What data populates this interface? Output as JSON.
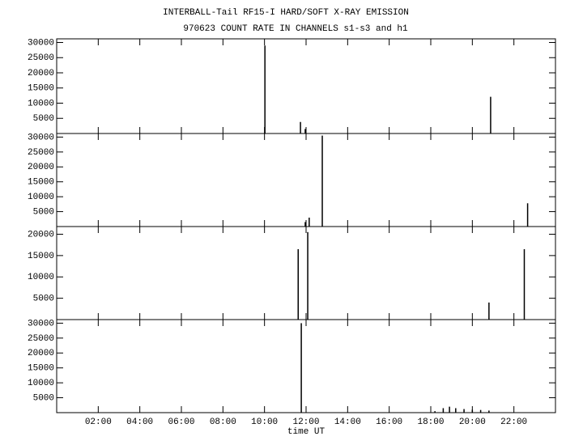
{
  "chart_data": [
    {
      "type": "stem",
      "title": "INTERBALL-Tail RF15-I HARD/SOFT X-RAY EMISSION",
      "subtitle": "970623  COUNT RATE IN CHANNELS s1-s3 and h1",
      "x": [
        10.02,
        11.73,
        11.96,
        20.88
      ],
      "values": [
        29000,
        3800,
        1500,
        12100
      ],
      "xlim": [
        0,
        24
      ],
      "xticks": [
        2,
        4,
        6,
        8,
        10,
        12,
        14,
        16,
        18,
        20,
        22
      ],
      "ylim": [
        0,
        31200
      ],
      "yticks": [
        5000,
        10000,
        15000,
        20000,
        25000,
        30000
      ],
      "color": "#000000"
    },
    {
      "type": "stem",
      "x": [
        11.96,
        12.15,
        12.78,
        22.66
      ],
      "values": [
        1500,
        3000,
        30500,
        7800
      ],
      "xlim": [
        0,
        24
      ],
      "xticks": [
        2,
        4,
        6,
        8,
        10,
        12,
        14,
        16,
        18,
        20,
        22
      ],
      "ylim": [
        0,
        31200
      ],
      "yticks": [
        5000,
        10000,
        15000,
        20000,
        25000,
        30000
      ],
      "color": "#000000"
    },
    {
      "type": "stem",
      "x": [
        11.62,
        12.08,
        20.8,
        22.5
      ],
      "values": [
        16500,
        20500,
        4000,
        16500
      ],
      "xlim": [
        0,
        24
      ],
      "xticks": [
        2,
        4,
        6,
        8,
        10,
        12,
        14,
        16,
        18,
        20,
        22
      ],
      "ylim": [
        0,
        21800
      ],
      "yticks": [
        5000,
        10000,
        15000,
        20000
      ],
      "color": "#000000"
    },
    {
      "type": "stem",
      "xlabel": "time UT",
      "x": [
        11.77,
        18.2,
        18.6,
        18.9,
        19.2,
        19.6,
        20.0,
        20.4,
        20.8
      ],
      "values": [
        30000,
        500,
        1500,
        2000,
        1500,
        1200,
        1000,
        900,
        700
      ],
      "xlim": [
        0,
        24
      ],
      "xticks": [
        {
          "value": 2,
          "label": "02:00"
        },
        {
          "value": 4,
          "label": "04:00"
        },
        {
          "value": 6,
          "label": "06:00"
        },
        {
          "value": 8,
          "label": "08:00"
        },
        {
          "value": 10,
          "label": "10:00"
        },
        {
          "value": 12,
          "label": "12:00"
        },
        {
          "value": 14,
          "label": "14:00"
        },
        {
          "value": 16,
          "label": "16:00"
        },
        {
          "value": 18,
          "label": "18:00"
        },
        {
          "value": 20,
          "label": "20:00"
        },
        {
          "value": 22,
          "label": "22:00"
        }
      ],
      "ylim": [
        0,
        31200
      ],
      "yticks": [
        5000,
        10000,
        15000,
        20000,
        25000,
        30000
      ],
      "color": "#000000"
    }
  ]
}
